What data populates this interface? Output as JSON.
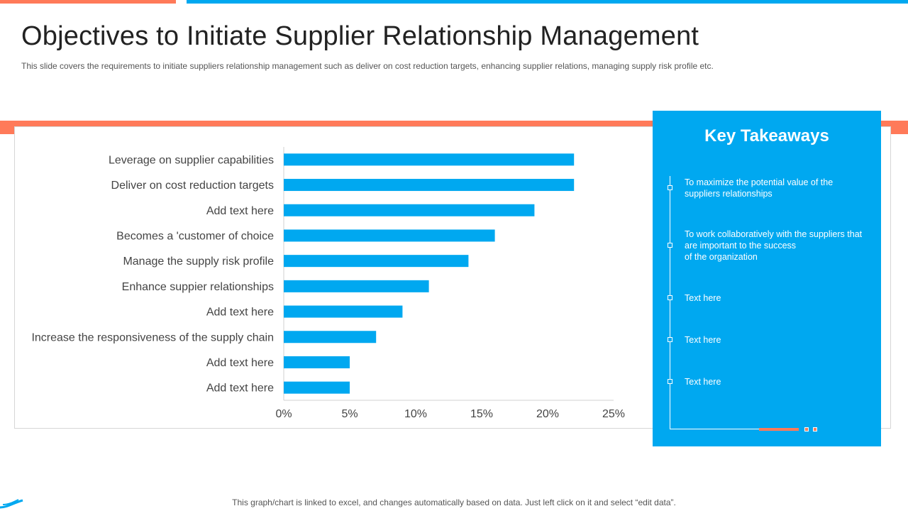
{
  "header": {
    "title": "Objectives to Initiate Supplier Relationship Management",
    "subtitle": "This slide covers the requirements to initiate suppliers relationship management such as deliver on cost reduction targets, enhancing supplier relations, managing supply risk profile etc."
  },
  "chart_data": {
    "type": "bar",
    "orientation": "horizontal",
    "categories": [
      "Leverage on supplier capabilities",
      "Deliver on cost reduction targets",
      "Add text here",
      "Becomes a 'customer of choice",
      "Manage the supply risk profile",
      "Enhance suppier relationships",
      "Add text here",
      "Increase the responsiveness of the supply chain",
      "Add text here",
      "Add text here"
    ],
    "values": [
      0.22,
      0.22,
      0.19,
      0.16,
      0.14,
      0.11,
      0.09,
      0.07,
      0.05,
      0.05
    ],
    "xlim": [
      0,
      0.25
    ],
    "xticks": [
      0,
      0.05,
      0.1,
      0.15,
      0.2,
      0.25
    ],
    "xtick_labels": [
      "0%",
      "5%",
      "10%",
      "15%",
      "20%",
      "25%"
    ],
    "bar_color": "#00a8f0",
    "grid": false,
    "legend": "none"
  },
  "takeaways": {
    "title": "Key Takeaways",
    "items": [
      "To maximize the potential value of the\nsuppliers relationships",
      "To work collaboratively  with the suppliers that\nare important to the success\nof the organization",
      "Text here",
      "Text here",
      "Text here"
    ]
  },
  "footer": {
    "note": "This graph/chart is linked to excel, and changes automatically based on data. Just left click on it and select “edit data”."
  },
  "colors": {
    "accent_blue": "#00a8f0",
    "accent_orange": "#ff7a59"
  }
}
